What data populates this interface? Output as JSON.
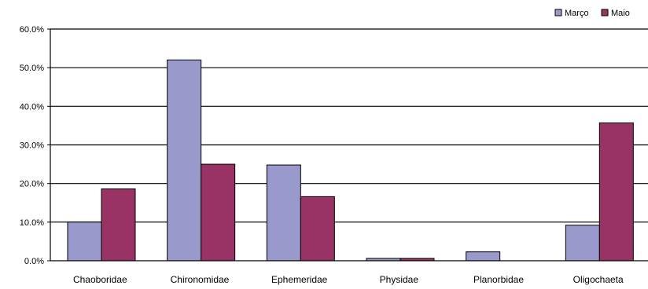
{
  "chart_data": {
    "type": "bar",
    "title": "",
    "xlabel": "",
    "ylabel": "",
    "categories": [
      "Chaoboridae",
      "Chironomidae",
      "Ephemeridae",
      "Physidae",
      "Planorbidae",
      "Oligochaeta"
    ],
    "series": [
      {
        "name": "Março",
        "color": "#9999cc",
        "values": [
          10.0,
          52.0,
          24.8,
          0.6,
          2.3,
          9.2
        ]
      },
      {
        "name": "Maio",
        "color": "#993366",
        "values": [
          18.6,
          25.0,
          16.6,
          0.6,
          0.0,
          35.7
        ]
      }
    ],
    "ylim": [
      0,
      60
    ],
    "yticks": [
      0,
      10,
      20,
      30,
      40,
      50,
      60
    ],
    "ytick_labels": [
      "0.0%",
      "10.0%",
      "20.0%",
      "30.0%",
      "40.0%",
      "50.0%",
      "60.0%"
    ],
    "grid": true,
    "legend_position": "top-right"
  }
}
